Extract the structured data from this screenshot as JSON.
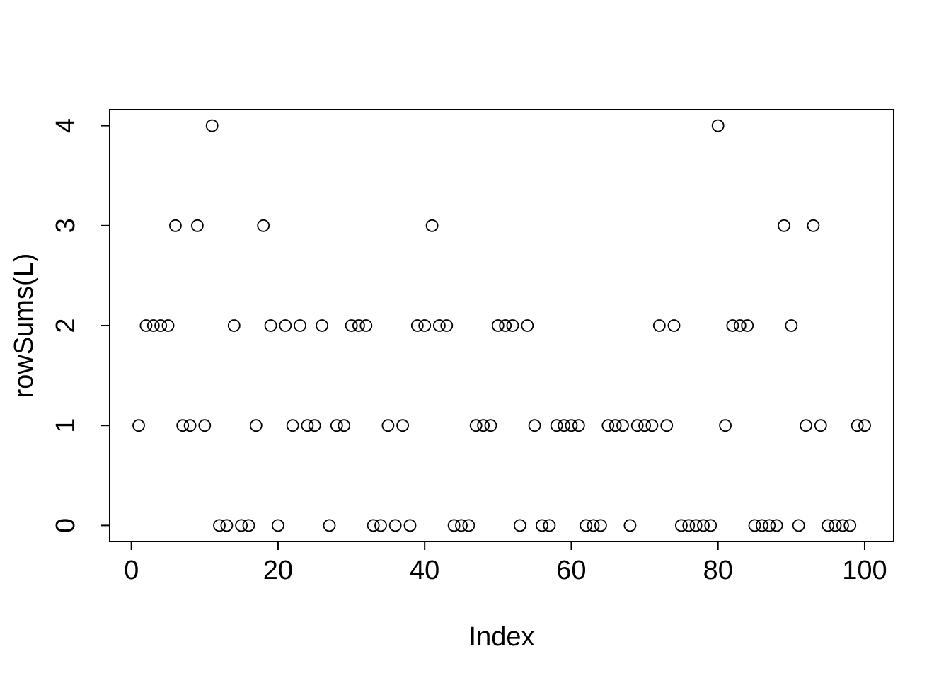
{
  "figure": {
    "background": "#ffffff",
    "foreground": "#000000"
  },
  "chart_data": {
    "type": "scatter",
    "title": "",
    "xlabel": "Index",
    "ylabel": "rowSums(L)",
    "point_style": "open-circle",
    "grid": false,
    "legend": null,
    "xlim": [
      -2.96,
      103.96
    ],
    "ylim": [
      -0.16,
      4.16
    ],
    "x_ticks": [
      0,
      20,
      40,
      60,
      80,
      100
    ],
    "y_ticks": [
      0,
      1,
      2,
      3,
      4
    ],
    "series": [
      {
        "name": "rowSums(L)",
        "x": [
          1,
          2,
          3,
          4,
          5,
          6,
          7,
          8,
          9,
          10,
          11,
          12,
          13,
          14,
          15,
          16,
          17,
          18,
          19,
          20,
          21,
          22,
          23,
          24,
          25,
          26,
          27,
          28,
          29,
          30,
          31,
          32,
          33,
          34,
          35,
          36,
          37,
          38,
          39,
          40,
          41,
          42,
          43,
          44,
          45,
          46,
          47,
          48,
          49,
          50,
          51,
          52,
          53,
          54,
          55,
          56,
          57,
          58,
          59,
          60,
          61,
          62,
          63,
          64,
          65,
          66,
          67,
          68,
          69,
          70,
          71,
          72,
          73,
          74,
          75,
          76,
          77,
          78,
          79,
          80,
          81,
          82,
          83,
          84,
          85,
          86,
          87,
          88,
          89,
          90,
          91,
          92,
          93,
          94,
          95,
          96,
          97,
          98,
          99,
          100
        ],
        "y": [
          1,
          2,
          2,
          2,
          2,
          3,
          1,
          1,
          3,
          1,
          4,
          0,
          0,
          2,
          0,
          0,
          1,
          3,
          2,
          0,
          2,
          1,
          2,
          1,
          1,
          2,
          0,
          1,
          1,
          2,
          2,
          2,
          0,
          0,
          1,
          0,
          1,
          0,
          2,
          2,
          3,
          2,
          2,
          0,
          0,
          0,
          1,
          1,
          1,
          2,
          2,
          2,
          0,
          2,
          1,
          0,
          0,
          1,
          1,
          1,
          1,
          0,
          0,
          0,
          1,
          1,
          1,
          0,
          1,
          1,
          1,
          2,
          1,
          2,
          0,
          0,
          0,
          0,
          0,
          4,
          1,
          2,
          2,
          2,
          0,
          0,
          0,
          0,
          3,
          2,
          0,
          1,
          3,
          1,
          0,
          0,
          0,
          0,
          1,
          1
        ]
      }
    ]
  }
}
